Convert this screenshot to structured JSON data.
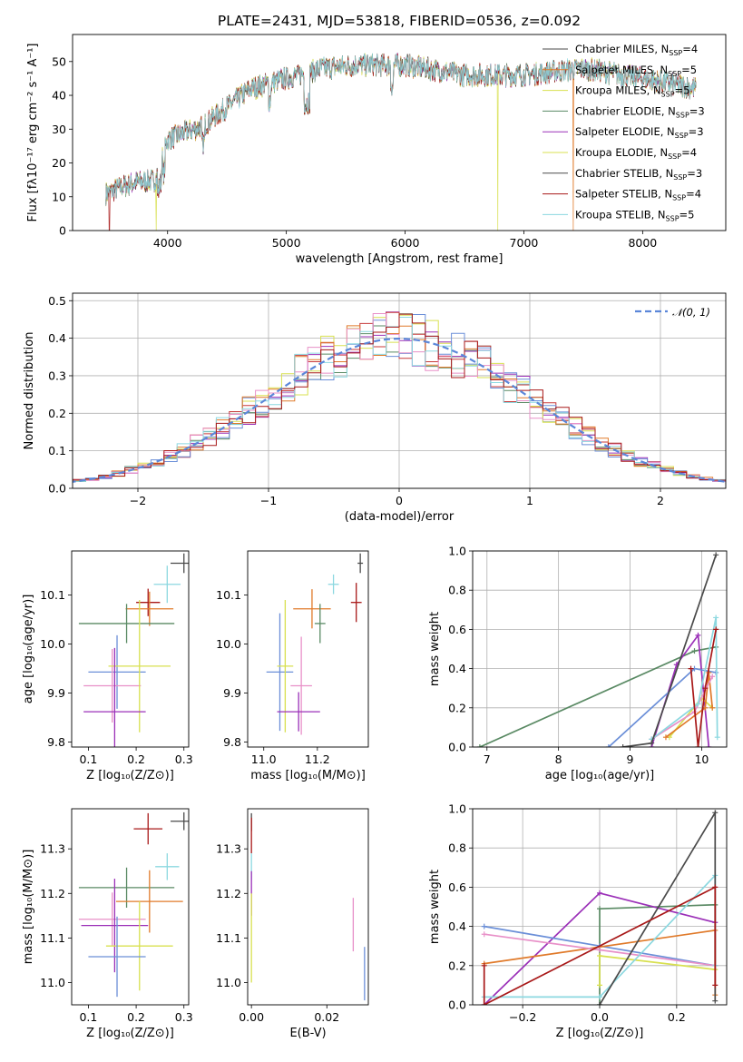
{
  "title": "PLATE=2431, MJD=53818, FIBERID=0536, z=0.092",
  "colors": [
    "#5a8a64",
    "#9b30b8",
    "#d8e050",
    "#c83a3a",
    "#6b8fd8",
    "#e07a2a",
    "#e890c8",
    "#8cd8e0",
    "#4a4a4a",
    "#a81818"
  ],
  "chart_data": [
    {
      "id": "spectrum",
      "type": "line",
      "title": "PLATE=2431, MJD=53818, FIBERID=0536, z=0.092",
      "xlabel": "wavelength [Angstrom, rest frame]",
      "ylabel": "Flux [fλ10⁻¹⁷ erg cm⁻² s⁻¹ A⁻¹]",
      "xlim": [
        3200,
        8700
      ],
      "ylim": [
        0,
        58
      ],
      "xticks": [
        4000,
        5000,
        6000,
        7000,
        8000
      ],
      "yticks": [
        0,
        10,
        20,
        30,
        40,
        50
      ],
      "legend_position": "upper-right",
      "continuum_x": [
        3480,
        3700,
        3900,
        4000,
        4300,
        4700,
        5000,
        5300,
        5600,
        6000,
        6500,
        7000,
        7500,
        8000,
        8450
      ],
      "continuum_y": [
        11,
        14,
        15,
        27,
        31,
        42,
        45,
        48,
        49,
        49,
        46,
        46,
        48,
        45,
        42
      ],
      "dropouts": [
        {
          "x": 3510,
          "series": 9
        },
        {
          "x": 3905,
          "series": 2
        },
        {
          "x": 6780,
          "series": 2
        },
        {
          "x": 7415,
          "series": 5
        }
      ],
      "series": [
        {
          "name": "Chabrier MILES, N",
          "sub": "SSP",
          "suffix": "=4",
          "color_index": 8
        },
        {
          "name": "Salpeter MILES, N",
          "sub": "SSP",
          "suffix": "=5",
          "color_index": 5
        },
        {
          "name": "Kroupa MILES, N",
          "sub": "SSP",
          "suffix": "=5",
          "color_index": 2
        },
        {
          "name": "Chabrier ELODIE, N",
          "sub": "SSP",
          "suffix": "=3",
          "color_index": 0
        },
        {
          "name": "Salpeter ELODIE, N",
          "sub": "SSP",
          "suffix": "=3",
          "color_index": 1
        },
        {
          "name": "Kroupa ELODIE, N",
          "sub": "SSP",
          "suffix": "=4",
          "color_index": 2
        },
        {
          "name": "Chabrier STELIB, N",
          "sub": "SSP",
          "suffix": "=3",
          "color_index": 8
        },
        {
          "name": "Salpeter STELIB, N",
          "sub": "SSP",
          "suffix": "=4",
          "color_index": 9
        },
        {
          "name": "Kroupa STELIB, N",
          "sub": "SSP",
          "suffix": "=5",
          "color_index": 7
        }
      ]
    },
    {
      "id": "residuals",
      "type": "line",
      "xlabel": "(data-model)/error",
      "ylabel": "Normed distribution",
      "xlim": [
        -2.5,
        2.5
      ],
      "ylim": [
        0,
        0.52
      ],
      "xticks": [
        -2,
        -1,
        0,
        1,
        2
      ],
      "yticks": [
        0.0,
        0.1,
        0.2,
        0.3,
        0.4,
        0.5
      ],
      "grid": true,
      "bin_width": 0.1,
      "legend": "𝒩(0, 1)",
      "legend_position": "upper-right",
      "gaussian": {
        "mean": 0,
        "sigma": 1
      }
    },
    {
      "id": "age-vs-z",
      "type": "scatter",
      "xlabel": "Z [log₁₀(Z/Z⊙)]",
      "ylabel": "age  [log₁₀(age/yr)]",
      "xlim": [
        0.065,
        0.31
      ],
      "ylim": [
        9.79,
        10.19
      ],
      "xticks": [
        0.1,
        0.2,
        0.3
      ],
      "yticks": [
        9.8,
        9.9,
        10.0,
        10.1
      ],
      "points": [
        {
          "x": 0.3,
          "y": 10.165,
          "xerr": 0.028,
          "yerr": 0.02,
          "c": 8
        },
        {
          "x": 0.265,
          "y": 10.122,
          "xerr": 0.028,
          "yerr": 0.038,
          "c": 7
        },
        {
          "x": 0.225,
          "y": 10.085,
          "xerr": 0.025,
          "yerr": 0.028,
          "c": 9
        },
        {
          "x": 0.228,
          "y": 10.072,
          "xerr": 0.05,
          "yerr": 0.035,
          "c": 5
        },
        {
          "x": 0.18,
          "y": 10.042,
          "xerr": 0.1,
          "yerr": 0.04,
          "c": 0
        },
        {
          "x": 0.16,
          "y": 9.943,
          "xerr": 0.06,
          "yerr": 0.075,
          "c": 4
        },
        {
          "x": 0.15,
          "y": 9.915,
          "xerr": 0.06,
          "yerr": 0.075,
          "c": 6
        },
        {
          "x": 0.207,
          "y": 9.955,
          "xerr": 0.065,
          "yerr": 0.135,
          "c": 2
        },
        {
          "x": 0.155,
          "y": 9.862,
          "xerr": 0.065,
          "yerr": 0.13,
          "c": 1
        }
      ]
    },
    {
      "id": "age-vs-mass",
      "type": "scatter",
      "xlabel": "mass [log₁₀(M/M⊙)]",
      "xlim": [
        10.94,
        11.39
      ],
      "ylim": [
        9.79,
        10.19
      ],
      "xticks": [
        11.0,
        11.2
      ],
      "yticks": [
        9.8,
        9.9,
        10.0,
        10.1
      ],
      "points": [
        {
          "x": 11.36,
          "y": 10.165,
          "xerr": 0.01,
          "yerr": 0.02,
          "c": 8
        },
        {
          "x": 11.26,
          "y": 10.122,
          "xerr": 0.02,
          "yerr": 0.02,
          "c": 7
        },
        {
          "x": 11.345,
          "y": 10.085,
          "xerr": 0.02,
          "yerr": 0.04,
          "c": 9
        },
        {
          "x": 11.18,
          "y": 10.072,
          "xerr": 0.07,
          "yerr": 0.04,
          "c": 5
        },
        {
          "x": 11.21,
          "y": 10.042,
          "xerr": 0.02,
          "yerr": 0.04,
          "c": 0
        },
        {
          "x": 11.06,
          "y": 9.943,
          "xerr": 0.05,
          "yerr": 0.12,
          "c": 4
        },
        {
          "x": 11.14,
          "y": 9.915,
          "xerr": 0.04,
          "yerr": 0.1,
          "c": 6
        },
        {
          "x": 11.08,
          "y": 9.955,
          "xerr": 0.03,
          "yerr": 0.135,
          "c": 2
        },
        {
          "x": 11.13,
          "y": 9.862,
          "xerr": 0.08,
          "yerr": 0.04,
          "c": 1
        }
      ]
    },
    {
      "id": "weight-vs-age",
      "type": "line",
      "xlabel": "age  [log₁₀(age/yr)]",
      "ylabel": "mass weight",
      "xlim": [
        6.8,
        10.35
      ],
      "ylim": [
        0,
        1
      ],
      "xticks": [
        7,
        8,
        9,
        10
      ],
      "yticks": [
        0.0,
        0.2,
        0.4,
        0.6,
        0.8,
        1.0
      ],
      "grid": true,
      "series": [
        {
          "c": 0,
          "x": [
            6.9,
            9.9,
            10.2
          ],
          "y": [
            0.0,
            0.49,
            0.51
          ]
        },
        {
          "c": 1,
          "x": [
            9.3,
            9.65,
            9.95,
            10.1
          ],
          "y": [
            0.0,
            0.42,
            0.57,
            0.0
          ]
        },
        {
          "c": 2,
          "x": [
            9.55,
            10.0,
            10.15
          ],
          "y": [
            0.05,
            0.25,
            0.2
          ]
        },
        {
          "c": 4,
          "x": [
            8.7,
            9.9,
            10.2
          ],
          "y": [
            0.0,
            0.4,
            0.38
          ]
        },
        {
          "c": 5,
          "x": [
            9.5,
            10.05,
            10.1,
            10.15
          ],
          "y": [
            0.05,
            0.2,
            0.38,
            0.2
          ]
        },
        {
          "c": 6,
          "x": [
            9.3,
            9.9,
            10.15
          ],
          "y": [
            0.04,
            0.18,
            0.36
          ]
        },
        {
          "c": 7,
          "x": [
            9.3,
            9.95,
            10.2,
            10.22
          ],
          "y": [
            0.04,
            0.22,
            0.66,
            0.05
          ]
        },
        {
          "c": 8,
          "x": [
            8.9,
            9.3,
            10.2
          ],
          "y": [
            0.0,
            0.02,
            0.98
          ]
        },
        {
          "c": 9,
          "x": [
            9.85,
            9.95,
            10.05,
            10.2
          ],
          "y": [
            0.4,
            0.0,
            0.3,
            0.6
          ]
        }
      ]
    },
    {
      "id": "mass-vs-z",
      "type": "scatter",
      "xlabel": "Z [log₁₀(Z/Z⊙)]",
      "ylabel": "mass [log₁₀(M/M⊙)]",
      "xlim": [
        0.065,
        0.31
      ],
      "ylim": [
        10.95,
        11.39
      ],
      "xticks": [
        0.1,
        0.2,
        0.3
      ],
      "yticks": [
        11.0,
        11.1,
        11.2,
        11.3
      ],
      "points": [
        {
          "x": 0.3,
          "y": 11.362,
          "xerr": 0.028,
          "yerr": 0.02,
          "c": 8
        },
        {
          "x": 0.225,
          "y": 11.345,
          "xerr": 0.03,
          "yerr": 0.035,
          "c": 9
        },
        {
          "x": 0.265,
          "y": 11.26,
          "xerr": 0.025,
          "yerr": 0.03,
          "c": 7
        },
        {
          "x": 0.18,
          "y": 11.213,
          "xerr": 0.1,
          "yerr": 0.045,
          "c": 0
        },
        {
          "x": 0.228,
          "y": 11.182,
          "xerr": 0.07,
          "yerr": 0.07,
          "c": 5
        },
        {
          "x": 0.15,
          "y": 11.142,
          "xerr": 0.07,
          "yerr": 0.06,
          "c": 6
        },
        {
          "x": 0.155,
          "y": 11.128,
          "xerr": 0.07,
          "yerr": 0.105,
          "c": 1
        },
        {
          "x": 0.207,
          "y": 11.082,
          "xerr": 0.07,
          "yerr": 0.1,
          "c": 2
        },
        {
          "x": 0.16,
          "y": 11.058,
          "xerr": 0.06,
          "yerr": 0.09,
          "c": 4
        }
      ]
    },
    {
      "id": "mass-vs-ebv",
      "type": "scatter",
      "xlabel": "E(B-V)",
      "xlim": [
        -0.001,
        0.031
      ],
      "ylim": [
        10.95,
        11.39
      ],
      "xticks": [
        0.0,
        0.02
      ],
      "yticks": [
        11.0,
        11.1,
        11.2,
        11.3
      ],
      "points": [
        {
          "x": 0.0,
          "y": 11.36,
          "yerr": 0.02,
          "c": 8
        },
        {
          "x": 0.0,
          "y": 11.33,
          "yerr": 0.04,
          "c": 9
        },
        {
          "x": 0.0,
          "y": 11.26,
          "yerr": 0.03,
          "c": 7
        },
        {
          "x": 0.0,
          "y": 11.2,
          "yerr": 0.05,
          "c": 1
        },
        {
          "x": 0.0,
          "y": 11.1,
          "yerr": 0.1,
          "c": 2
        },
        {
          "x": 0.027,
          "y": 11.13,
          "yerr": 0.06,
          "c": 6
        },
        {
          "x": 0.03,
          "y": 11.02,
          "yerr": 0.06,
          "c": 4
        }
      ]
    },
    {
      "id": "weight-vs-z",
      "type": "line",
      "xlabel": "Z [log₁₀(Z/Z⊙)]",
      "ylabel": "mass weight",
      "xlim": [
        -0.33,
        0.33
      ],
      "ylim": [
        0,
        1
      ],
      "xticks": [
        -0.2,
        0.0,
        0.2
      ],
      "yticks": [
        0.0,
        0.2,
        0.4,
        0.6,
        0.8,
        1.0
      ],
      "grid": true,
      "series": [
        {
          "c": 0,
          "x": [
            0.0,
            0.0,
            0.3,
            0.3
          ],
          "y": [
            0.0,
            0.49,
            0.51,
            0.2
          ]
        },
        {
          "c": 1,
          "x": [
            -0.3,
            0.0,
            0.3
          ],
          "y": [
            0.0,
            0.57,
            0.42
          ]
        },
        {
          "c": 2,
          "x": [
            0.0,
            0.0,
            0.3
          ],
          "y": [
            0.1,
            0.25,
            0.18
          ]
        },
        {
          "c": 4,
          "x": [
            -0.3,
            0.0,
            0.3
          ],
          "y": [
            0.4,
            0.3,
            0.2
          ]
        },
        {
          "c": 5,
          "x": [
            -0.3,
            0.3,
            0.3
          ],
          "y": [
            0.21,
            0.38,
            0.05
          ]
        },
        {
          "c": 6,
          "x": [
            -0.3,
            0.0,
            0.3
          ],
          "y": [
            0.36,
            0.28,
            0.2
          ]
        },
        {
          "c": 7,
          "x": [
            -0.3,
            0.0,
            0.3,
            0.3
          ],
          "y": [
            0.04,
            0.04,
            0.66,
            0.2
          ]
        },
        {
          "c": 8,
          "x": [
            0.0,
            0.3,
            0.3
          ],
          "y": [
            0.0,
            0.98,
            0.02
          ]
        },
        {
          "c": 9,
          "x": [
            -0.3,
            -0.3,
            0.3,
            0.3
          ],
          "y": [
            0.2,
            0.0,
            0.6,
            0.1
          ]
        }
      ]
    }
  ]
}
